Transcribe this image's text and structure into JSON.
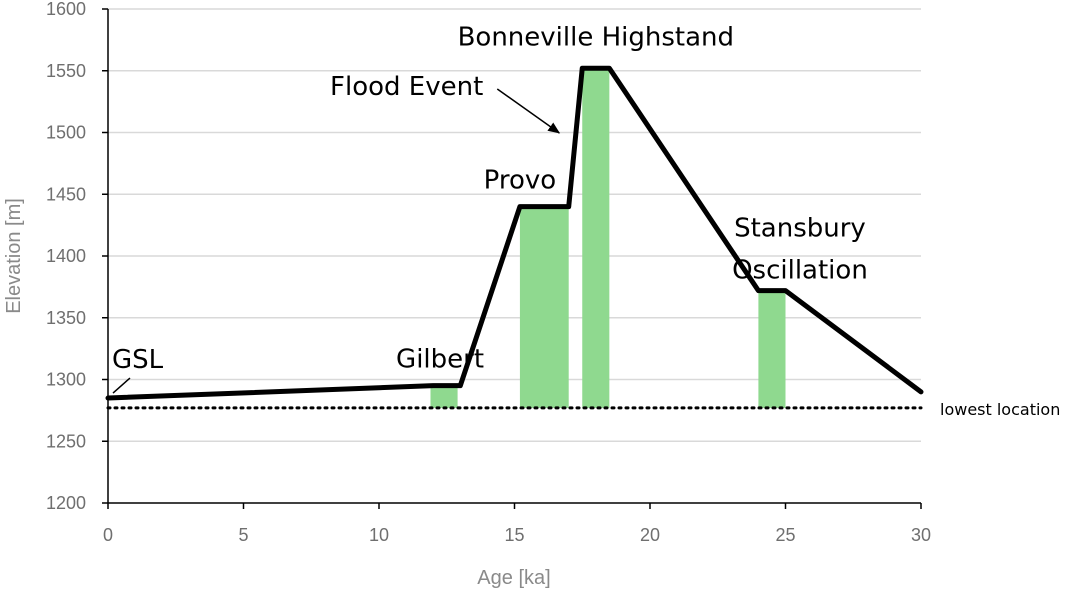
{
  "chart_data": {
    "type": "line",
    "title": "",
    "xlabel": "Age [ka]",
    "ylabel": "Elevation [m]",
    "xlim": [
      0,
      30
    ],
    "ylim": [
      1200,
      1600
    ],
    "x_ticks": [
      0,
      5,
      10,
      15,
      20,
      25,
      30
    ],
    "y_ticks": [
      1200,
      1250,
      1300,
      1350,
      1400,
      1450,
      1500,
      1550,
      1600
    ],
    "grid": "horizontal",
    "colors": {
      "line": "#000000",
      "bar": "#8fd98f",
      "grid": "#d9d9d9",
      "axis": "#000000"
    },
    "series": [
      {
        "x": [
          0,
          12,
          13,
          15.2,
          17,
          17.5,
          18.5,
          24,
          25,
          30
        ],
        "y": [
          1285,
          1295,
          1295,
          1440,
          1440,
          1552,
          1552,
          1372,
          1372,
          1290
        ]
      }
    ],
    "bars": [
      {
        "x0": 11.9,
        "x1": 12.9,
        "y": 1295
      },
      {
        "x0": 15.2,
        "x1": 17.0,
        "y": 1440
      },
      {
        "x0": 17.5,
        "x1": 18.5,
        "y": 1552
      },
      {
        "x0": 24.0,
        "x1": 25.0,
        "y": 1372
      }
    ],
    "bar_base": 1277,
    "reference_line": {
      "y": 1277,
      "style": "dotted",
      "label": "lowest location"
    },
    "annotations": [
      {
        "lines": [
          "GSL"
        ],
        "x": 0,
        "y": 1285
      },
      {
        "lines": [
          "Gilbert"
        ],
        "x": 12.4,
        "y": 1295
      },
      {
        "lines": [
          "Provo"
        ],
        "x": 15.2,
        "y": 1440
      },
      {
        "lines": [
          "Bonneville Highstand"
        ],
        "x": 18,
        "y": 1552
      },
      {
        "lines": [
          "Flood Event"
        ],
        "x": 16.8,
        "y": 1498
      },
      {
        "lines": [
          "Stansbury",
          "Oscillation"
        ],
        "x": 24.5,
        "y": 1372
      }
    ]
  }
}
